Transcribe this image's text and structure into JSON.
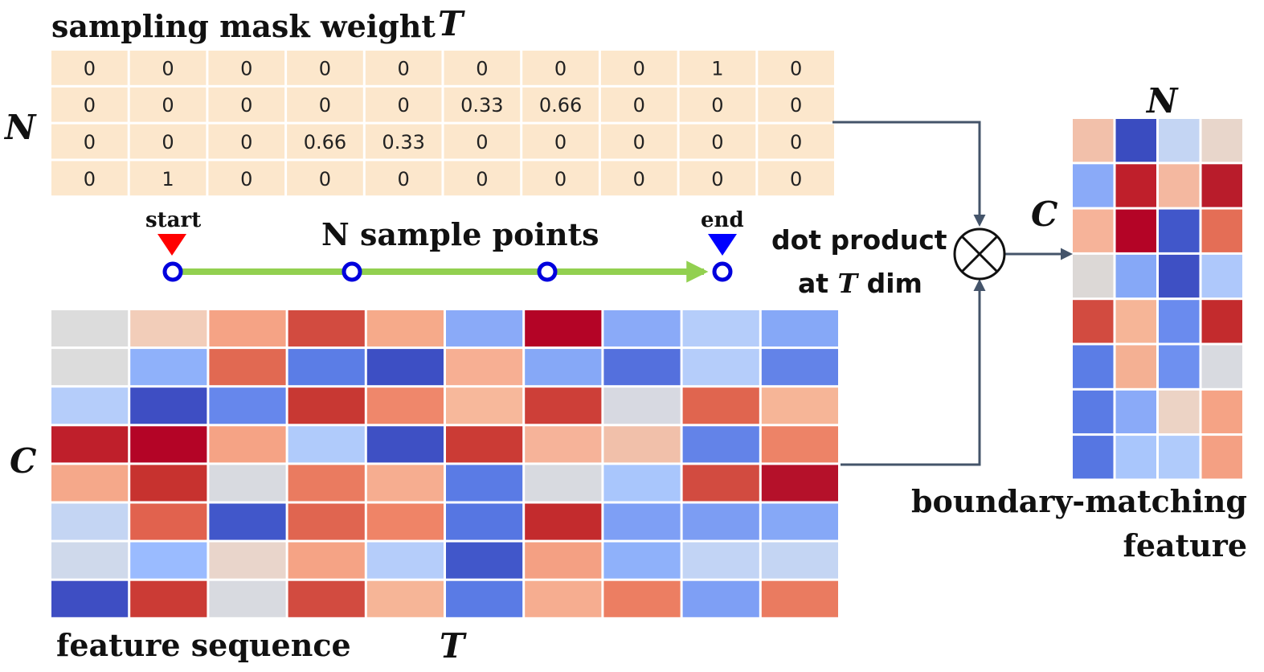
{
  "labels": {
    "mask_title": "sampling mask weight",
    "mask_t": "T",
    "mask_n": "N",
    "start": "start",
    "end": "end",
    "sample_points": "N sample points",
    "dot_line1": "dot product",
    "dot_line2_a": "at ",
    "dot_line2_t": "T",
    "dot_line2_b": " dim",
    "feature_c": "C",
    "feature_seq": "feature sequence",
    "feature_t": "T",
    "out_n": "N",
    "out_c": "C",
    "out_line1": "boundary-matching",
    "out_line2": "feature"
  },
  "colors": {
    "mask_cell": "#fce7cc",
    "start_marker": "#ff0000",
    "end_marker": "#0000ff",
    "sample_point": "#0000dd",
    "sample_line": "#92d050",
    "connector": "#44546a"
  },
  "mask": [
    [
      "0",
      "0",
      "0",
      "0",
      "0",
      "0",
      "0",
      "0",
      "1",
      "0"
    ],
    [
      "0",
      "0",
      "0",
      "0",
      "0",
      "0.33",
      "0.66",
      "0",
      "0",
      "0"
    ],
    [
      "0",
      "0",
      "0",
      "0.66",
      "0.33",
      "0",
      "0",
      "0",
      "0",
      "0"
    ],
    [
      "0",
      "1",
      "0",
      "0",
      "0",
      "0",
      "0",
      "0",
      "0",
      "0"
    ]
  ],
  "feature_heatmap": [
    [
      "#dcdcdc",
      "#f2cdb9",
      "#f5a385",
      "#d24b40",
      "#f6aa8a",
      "#8aaaf8",
      "#b40426",
      "#8aaaf8",
      "#b5cdfa",
      "#86a8f7"
    ],
    [
      "#dcdcdc",
      "#8fb1fa",
      "#e16952",
      "#5b7de6",
      "#3d4fc4",
      "#f7af93",
      "#86a8f7",
      "#5470dd",
      "#b5cdfa",
      "#6383e8"
    ],
    [
      "#b5cdfa",
      "#3e4ec3",
      "#6687ec",
      "#c83833",
      "#ef876b",
      "#f7b89b",
      "#cd3f38",
      "#d7d9e1",
      "#e0654f",
      "#f6b597"
    ],
    [
      "#bf1f2b",
      "#b40426",
      "#f5a385",
      "#b0cbfb",
      "#3e50c4",
      "#cb3b35",
      "#f6b399",
      "#f1c0aa",
      "#6383e8",
      "#ed8367"
    ],
    [
      "#f5a88a",
      "#c7322f",
      "#d8dae0",
      "#ea7b60",
      "#f6ad90",
      "#5a7be5",
      "#d8dae0",
      "#a9c6fc",
      "#d24b40",
      "#b5112a"
    ],
    [
      "#c4d5f3",
      "#e1624e",
      "#4157ca",
      "#e06550",
      "#ef8467",
      "#5676e2",
      "#c32b2d",
      "#7e9ff5",
      "#7c9df3",
      "#86a8f7"
    ],
    [
      "#cfd9eb",
      "#9abbff",
      "#e9d5cb",
      "#f5a385",
      "#b5cdfa",
      "#4157ca",
      "#f4a083",
      "#8fb1fa",
      "#c2d4f5",
      "#c4d5f3"
    ],
    [
      "#3e4ec3",
      "#cb3b35",
      "#d8dae0",
      "#d24b40",
      "#f6b597",
      "#5a7be5",
      "#f6ad90",
      "#ec7e62",
      "#7e9ff5",
      "#ea7b60"
    ]
  ],
  "output_heatmap": [
    [
      "#f2c0aa",
      "#3a4cc0",
      "#c4d5f3",
      "#e8d6cb"
    ],
    [
      "#8aaaf8",
      "#bf1f2b",
      "#f4b8a0",
      "#b91c2b"
    ],
    [
      "#f6b399",
      "#b40426",
      "#4157ca",
      "#e46e56"
    ],
    [
      "#dcd8d6",
      "#86a8f7",
      "#3e50c4",
      "#aec8fb"
    ],
    [
      "#d24b40",
      "#f6b597",
      "#6a8bee",
      "#c32b2d"
    ],
    [
      "#5b7de6",
      "#f4b093",
      "#6e90f0",
      "#d8dae0"
    ],
    [
      "#5a7be5",
      "#8aaaf8",
      "#ecd3c5",
      "#f5a385"
    ],
    [
      "#5676e2",
      "#a9c6fc",
      "#b0cbfb",
      "#f4a083"
    ]
  ]
}
